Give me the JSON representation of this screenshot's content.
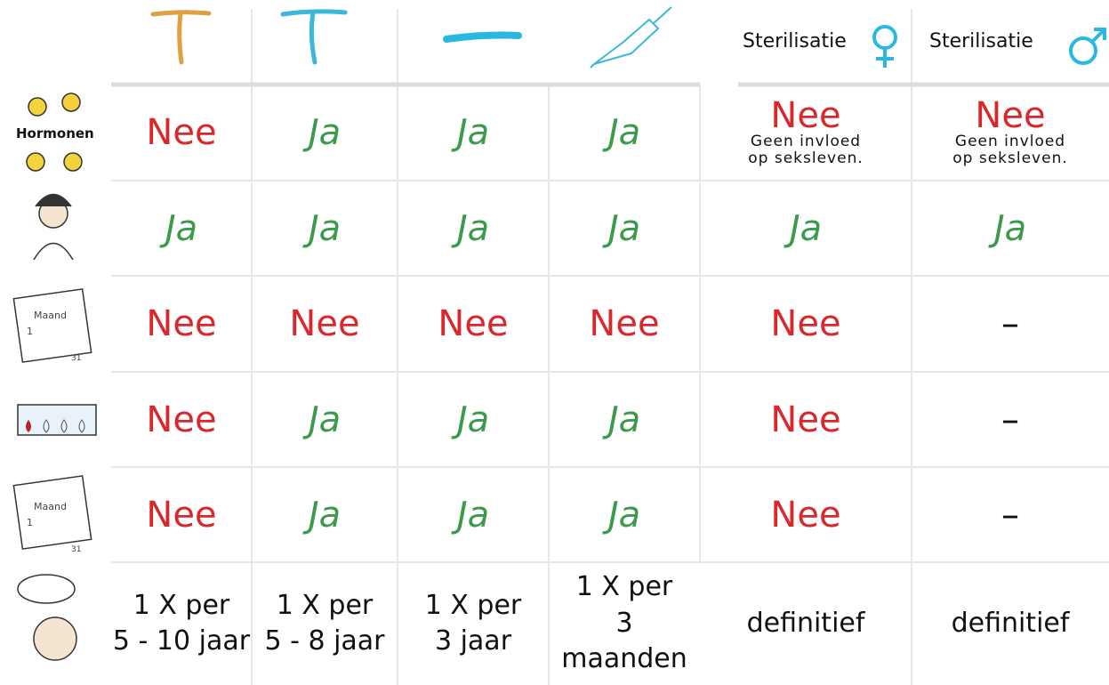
{
  "header": {
    "sterilization": [
      "Sterilisatie",
      "Sterilisatie"
    ]
  },
  "rows": [
    {
      "label": "Hormonen",
      "cells": [
        {
          "text": "Nee",
          "color": "#d8282c"
        },
        {
          "text": "Ja",
          "color": "#3c9a4c"
        },
        {
          "text": "Ja",
          "color": "#3c9a4c"
        },
        {
          "text": "Ja",
          "color": "#3c9a4c"
        },
        {
          "text": "Nee",
          "color": "#d8282c",
          "note": [
            "Geen invloed",
            "op seksleven."
          ]
        },
        {
          "text": "Nee",
          "color": "#d8282c",
          "note": [
            "Geen invloed",
            "op seksleven."
          ]
        }
      ]
    },
    {
      "cells": [
        {
          "text": "Ja",
          "color": "#3c9a4c"
        },
        {
          "text": "Ja",
          "color": "#3c9a4c"
        },
        {
          "text": "Ja",
          "color": "#3c9a4c"
        },
        {
          "text": "Ja",
          "color": "#3c9a4c"
        },
        {
          "text": "Ja",
          "color": "#3c9a4c"
        },
        {
          "text": "Ja",
          "color": "#3c9a4c"
        }
      ]
    },
    {
      "icon_text": [
        "Maand",
        "1",
        "31"
      ],
      "cells": [
        {
          "text": "Nee",
          "color": "#d8282c"
        },
        {
          "text": "Nee",
          "color": "#d8282c"
        },
        {
          "text": "Nee",
          "color": "#d8282c"
        },
        {
          "text": "Nee",
          "color": "#d8282c"
        },
        {
          "text": "Nee",
          "color": "#d8282c"
        },
        {
          "text": "–",
          "color": "#111111"
        }
      ]
    },
    {
      "cells": [
        {
          "text": "Nee",
          "color": "#d8282c"
        },
        {
          "text": "Ja",
          "color": "#3c9a4c"
        },
        {
          "text": "Ja",
          "color": "#3c9a4c"
        },
        {
          "text": "Ja",
          "color": "#3c9a4c"
        },
        {
          "text": "Nee",
          "color": "#d8282c"
        },
        {
          "text": "–",
          "color": "#111111"
        }
      ]
    },
    {
      "icon_text": [
        "Maand",
        "1",
        "31"
      ],
      "cells": [
        {
          "text": "Nee",
          "color": "#d8282c"
        },
        {
          "text": "Ja",
          "color": "#3c9a4c"
        },
        {
          "text": "Ja",
          "color": "#3c9a4c"
        },
        {
          "text": "Ja",
          "color": "#3c9a4c"
        },
        {
          "text": "Nee",
          "color": "#d8282c"
        },
        {
          "text": "–",
          "color": "#111111"
        }
      ]
    },
    {
      "cells": [
        {
          "lines": [
            "1 X per",
            "5 - 10 jaar"
          ],
          "color": "#111111"
        },
        {
          "lines": [
            "1 X per",
            "5 - 8 jaar"
          ],
          "color": "#111111"
        },
        {
          "lines": [
            "1 X per",
            "3 jaar"
          ],
          "color": "#111111"
        },
        {
          "lines": [
            "1 X per",
            "3 maanden"
          ],
          "color": "#111111"
        },
        {
          "lines": [
            "definitief"
          ],
          "color": "#111111"
        },
        {
          "lines": [
            "definitief"
          ],
          "color": "#111111"
        }
      ]
    }
  ]
}
